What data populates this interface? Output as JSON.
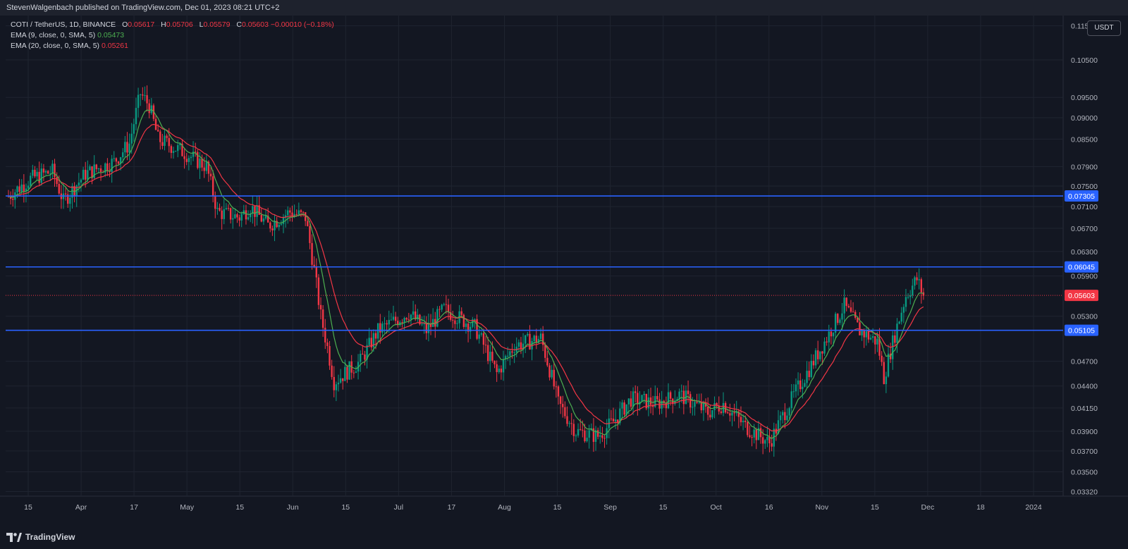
{
  "header": {
    "publisher": "StevenWalgenbach published on TradingView.com, Dec 01, 2023 08:21 UTC+2"
  },
  "legend": {
    "symbol": "COTI / TetherUS, 1D, BINANCE",
    "open_label": "O",
    "open": "0.05617",
    "high_label": "H",
    "high": "0.05706",
    "low_label": "L",
    "low": "0.05579",
    "close_label": "C",
    "close": "0.05603",
    "change": "−0.00010 (−0.18%)",
    "ema9_label": "EMA (9, close, 0, SMA, 5)",
    "ema9_value": "0.05473",
    "ema20_label": "EMA (20, close, 0, SMA, 5)",
    "ema20_value": "0.05261"
  },
  "currency_button": "USDT",
  "footer": {
    "brand": "TradingView"
  },
  "colors": {
    "background": "#131722",
    "up": "#089981",
    "down": "#f23645",
    "ema9": "#4caf50",
    "ema20": "#f23645",
    "level_line": "#2962ff"
  },
  "chart_data": {
    "type": "candlestick",
    "symbol": "COTI/USDT",
    "interval": "1D",
    "ylim": [
      0.0328,
      0.1182
    ],
    "y_ticks": [
      "0.11500",
      "0.10500",
      "0.09500",
      "0.09000",
      "0.08500",
      "0.07900",
      "0.07500",
      "0.07100",
      "0.06700",
      "0.06300",
      "0.05900",
      "0.05300",
      "0.04700",
      "0.04400",
      "0.04150",
      "0.03900",
      "0.03700",
      "0.03500",
      "0.03320"
    ],
    "x_labels": [
      "15",
      "Apr",
      "17",
      "May",
      "15",
      "Jun",
      "15",
      "Jul",
      "17",
      "Aug",
      "15",
      "Sep",
      "15",
      "Oct",
      "16",
      "Nov",
      "15",
      "Dec",
      "18",
      "2024"
    ],
    "horizontal_levels": [
      {
        "value": 0.07305,
        "label": "0.07305"
      },
      {
        "value": 0.06045,
        "label": "0.06045"
      },
      {
        "value": 0.05105,
        "label": "0.05105"
      }
    ],
    "last_price": {
      "value": 0.05603,
      "label": "0.05603"
    },
    "price_path": [
      {
        "d": 0,
        "p": 0.073
      },
      {
        "d": 10,
        "p": 0.0765
      },
      {
        "d": 20,
        "p": 0.078
      },
      {
        "d": 25,
        "p": 0.072
      },
      {
        "d": 35,
        "p": 0.0775
      },
      {
        "d": 48,
        "p": 0.08
      },
      {
        "d": 55,
        "p": 0.084
      },
      {
        "d": 60,
        "p": 0.096
      },
      {
        "d": 64,
        "p": 0.093
      },
      {
        "d": 68,
        "p": 0.085
      },
      {
        "d": 80,
        "p": 0.082
      },
      {
        "d": 90,
        "p": 0.079
      },
      {
        "d": 95,
        "p": 0.07
      },
      {
        "d": 105,
        "p": 0.069
      },
      {
        "d": 110,
        "p": 0.071
      },
      {
        "d": 118,
        "p": 0.0675
      },
      {
        "d": 128,
        "p": 0.07
      },
      {
        "d": 135,
        "p": 0.069
      },
      {
        "d": 142,
        "p": 0.053
      },
      {
        "d": 148,
        "p": 0.0445
      },
      {
        "d": 160,
        "p": 0.047
      },
      {
        "d": 168,
        "p": 0.051
      },
      {
        "d": 182,
        "p": 0.0535
      },
      {
        "d": 190,
        "p": 0.051
      },
      {
        "d": 198,
        "p": 0.054
      },
      {
        "d": 212,
        "p": 0.0515
      },
      {
        "d": 222,
        "p": 0.0455
      },
      {
        "d": 230,
        "p": 0.049
      },
      {
        "d": 242,
        "p": 0.05
      },
      {
        "d": 250,
        "p": 0.042
      },
      {
        "d": 258,
        "p": 0.039
      },
      {
        "d": 268,
        "p": 0.0385
      },
      {
        "d": 275,
        "p": 0.04
      },
      {
        "d": 283,
        "p": 0.0425
      },
      {
        "d": 295,
        "p": 0.042
      },
      {
        "d": 305,
        "p": 0.043
      },
      {
        "d": 318,
        "p": 0.041
      },
      {
        "d": 325,
        "p": 0.042
      },
      {
        "d": 335,
        "p": 0.0395
      },
      {
        "d": 346,
        "p": 0.0378
      },
      {
        "d": 355,
        "p": 0.042
      },
      {
        "d": 365,
        "p": 0.0465
      },
      {
        "d": 372,
        "p": 0.05
      },
      {
        "d": 380,
        "p": 0.0545
      },
      {
        "d": 387,
        "p": 0.051
      },
      {
        "d": 395,
        "p": 0.0495
      },
      {
        "d": 398,
        "p": 0.045
      },
      {
        "d": 403,
        "p": 0.0505
      },
      {
        "d": 408,
        "p": 0.056
      },
      {
        "d": 413,
        "p": 0.0585
      },
      {
        "d": 416,
        "p": 0.056
      }
    ]
  }
}
